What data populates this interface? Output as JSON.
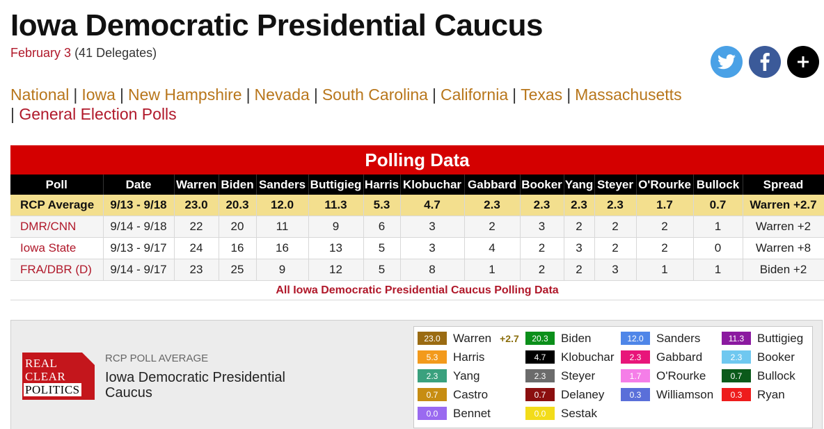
{
  "title": "Iowa Democratic Presidential Caucus",
  "subtitle": {
    "date": "February 3",
    "delegates": "(41 Delegates)"
  },
  "social": {
    "twitter": "twitter-icon",
    "facebook": "facebook-icon",
    "more": "plus-icon"
  },
  "nav": {
    "links": [
      "National",
      "Iowa",
      "New Hampshire",
      "Nevada",
      "South Carolina",
      "California",
      "Texas",
      "Massachusetts"
    ],
    "general": "General Election Polls",
    "separator": "|"
  },
  "polling": {
    "heading": "Polling Data",
    "columns": [
      "Poll",
      "Date",
      "Warren",
      "Biden",
      "Sanders",
      "Buttigieg",
      "Harris",
      "Klobuchar",
      "Gabbard",
      "Booker",
      "Yang",
      "Steyer",
      "O'Rourke",
      "Bullock",
      "Spread"
    ],
    "rows": [
      [
        "RCP Average",
        "9/13 - 9/18",
        "23.0",
        "20.3",
        "12.0",
        "11.3",
        "5.3",
        "4.7",
        "2.3",
        "2.3",
        "2.3",
        "2.3",
        "1.7",
        "0.7",
        "Warren +2.7"
      ],
      [
        "DMR/CNN",
        "9/14 - 9/18",
        "22",
        "20",
        "11",
        "9",
        "6",
        "3",
        "2",
        "3",
        "2",
        "2",
        "2",
        "1",
        "Warren +2"
      ],
      [
        "Iowa State",
        "9/13 - 9/17",
        "24",
        "16",
        "16",
        "13",
        "5",
        "3",
        "4",
        "2",
        "3",
        "2",
        "2",
        "0",
        "Warren +8"
      ],
      [
        "FRA/DBR (D)",
        "9/14 - 9/17",
        "23",
        "25",
        "9",
        "12",
        "5",
        "8",
        "1",
        "2",
        "2",
        "3",
        "1",
        "1",
        "Biden +2"
      ]
    ],
    "all_link": "All Iowa Democratic Presidential Caucus Polling Data"
  },
  "widget": {
    "logo": [
      "REAL",
      "CLEAR",
      "POLITICS"
    ],
    "label": "RCP POLL AVERAGE",
    "title": "Iowa Democratic Presidential Caucus",
    "legend": [
      {
        "value": "23.0",
        "name": "Warren",
        "color": "#9a6b12",
        "spread": "+2.7"
      },
      {
        "value": "20.3",
        "name": "Biden",
        "color": "#0b8f1a"
      },
      {
        "value": "12.0",
        "name": "Sanders",
        "color": "#4f86e8"
      },
      {
        "value": "11.3",
        "name": "Buttigieg",
        "color": "#8b1aa0"
      },
      {
        "value": "5.3",
        "name": "Harris",
        "color": "#f39a1c"
      },
      {
        "value": "4.7",
        "name": "Klobuchar",
        "color": "#000000"
      },
      {
        "value": "2.3",
        "name": "Gabbard",
        "color": "#e8157a"
      },
      {
        "value": "2.3",
        "name": "Booker",
        "color": "#6fc8f0"
      },
      {
        "value": "2.3",
        "name": "Yang",
        "color": "#3aa17e"
      },
      {
        "value": "2.3",
        "name": "Steyer",
        "color": "#6b6b6b"
      },
      {
        "value": "1.7",
        "name": "O'Rourke",
        "color": "#f57ee8"
      },
      {
        "value": "0.7",
        "name": "Bullock",
        "color": "#0b5a1a"
      },
      {
        "value": "0.7",
        "name": "Castro",
        "color": "#c78d12"
      },
      {
        "value": "0.7",
        "name": "Delaney",
        "color": "#8b0f0f"
      },
      {
        "value": "0.3",
        "name": "Williamson",
        "color": "#5a6fd9"
      },
      {
        "value": "0.3",
        "name": "Ryan",
        "color": "#ee1c1c"
      },
      {
        "value": "0.0",
        "name": "Bennet",
        "color": "#9a6af0"
      },
      {
        "value": "0.0",
        "name": "Sestak",
        "color": "#f2dc1a"
      }
    ]
  }
}
